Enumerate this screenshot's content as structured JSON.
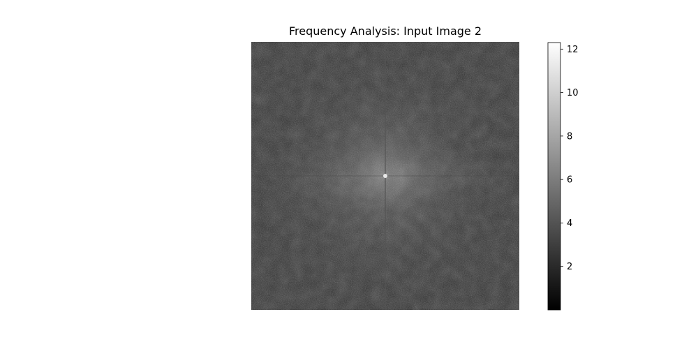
{
  "chart_data": {
    "type": "heatmap",
    "title": "Frequency Analysis: Input Image 2",
    "description_axes": "none",
    "colormap": "gray",
    "colorbar": {
      "range": [
        0,
        12.3
      ],
      "ticks": [
        2,
        4,
        6,
        8,
        10,
        12
      ],
      "tick_labels": [
        "2",
        "4",
        "6",
        "8",
        "10",
        "12"
      ]
    }
  }
}
